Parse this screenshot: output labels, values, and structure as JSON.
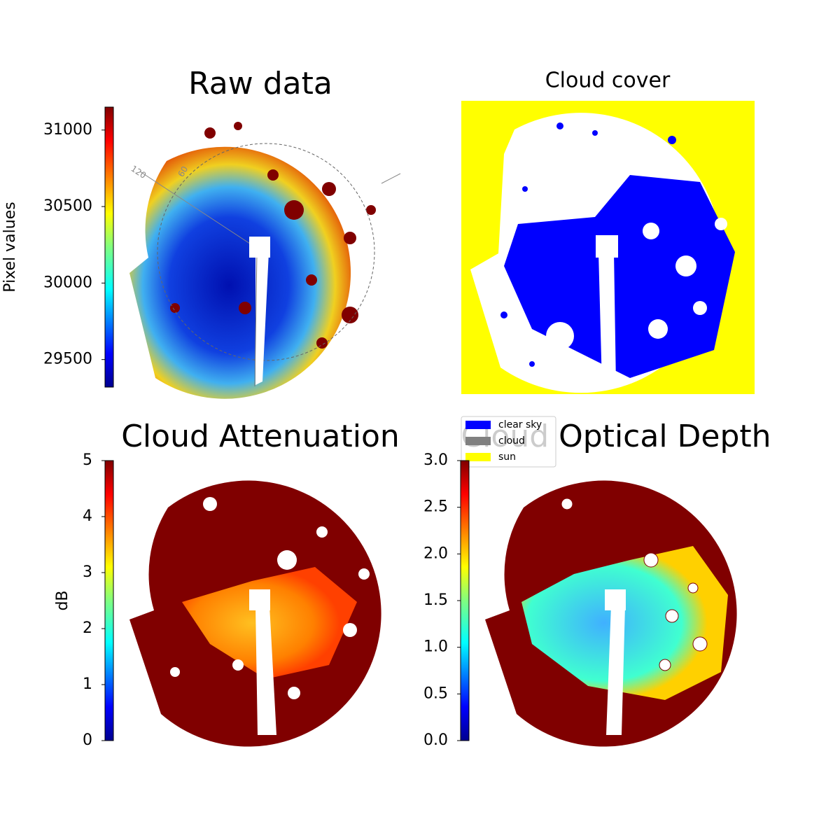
{
  "chart_data": [
    {
      "type": "image",
      "title": "Raw data",
      "annotations": [
        "120",
        "60"
      ],
      "colorbar": {
        "label": "Pixel values",
        "lim": [
          29320,
          31150
        ],
        "ticks": [
          29500,
          30000,
          30500,
          31000
        ]
      }
    },
    {
      "type": "image",
      "title": "Cloud cover",
      "series": [
        {
          "name": "clear sky",
          "color": "#0000ff"
        },
        {
          "name": "cloud",
          "color": "#808080"
        },
        {
          "name": "sun",
          "color": "#ffff00"
        }
      ]
    },
    {
      "type": "image",
      "title": "Cloud Attenuation",
      "colorbar": {
        "label": "dB",
        "lim": [
          0,
          5
        ],
        "ticks": [
          0,
          1,
          2,
          3,
          4,
          5
        ]
      }
    },
    {
      "type": "image",
      "title": "Cloud Optical Depth",
      "colorbar": {
        "lim": [
          0,
          3
        ],
        "ticks": [
          {
            "value": 0,
            "label": "0.0"
          },
          0.5,
          {
            "value": 1,
            "label": "1.0"
          },
          1.5,
          {
            "value": 2,
            "label": "2.0"
          },
          2.5,
          {
            "value": 3,
            "label": "3.0"
          }
        ]
      }
    }
  ]
}
